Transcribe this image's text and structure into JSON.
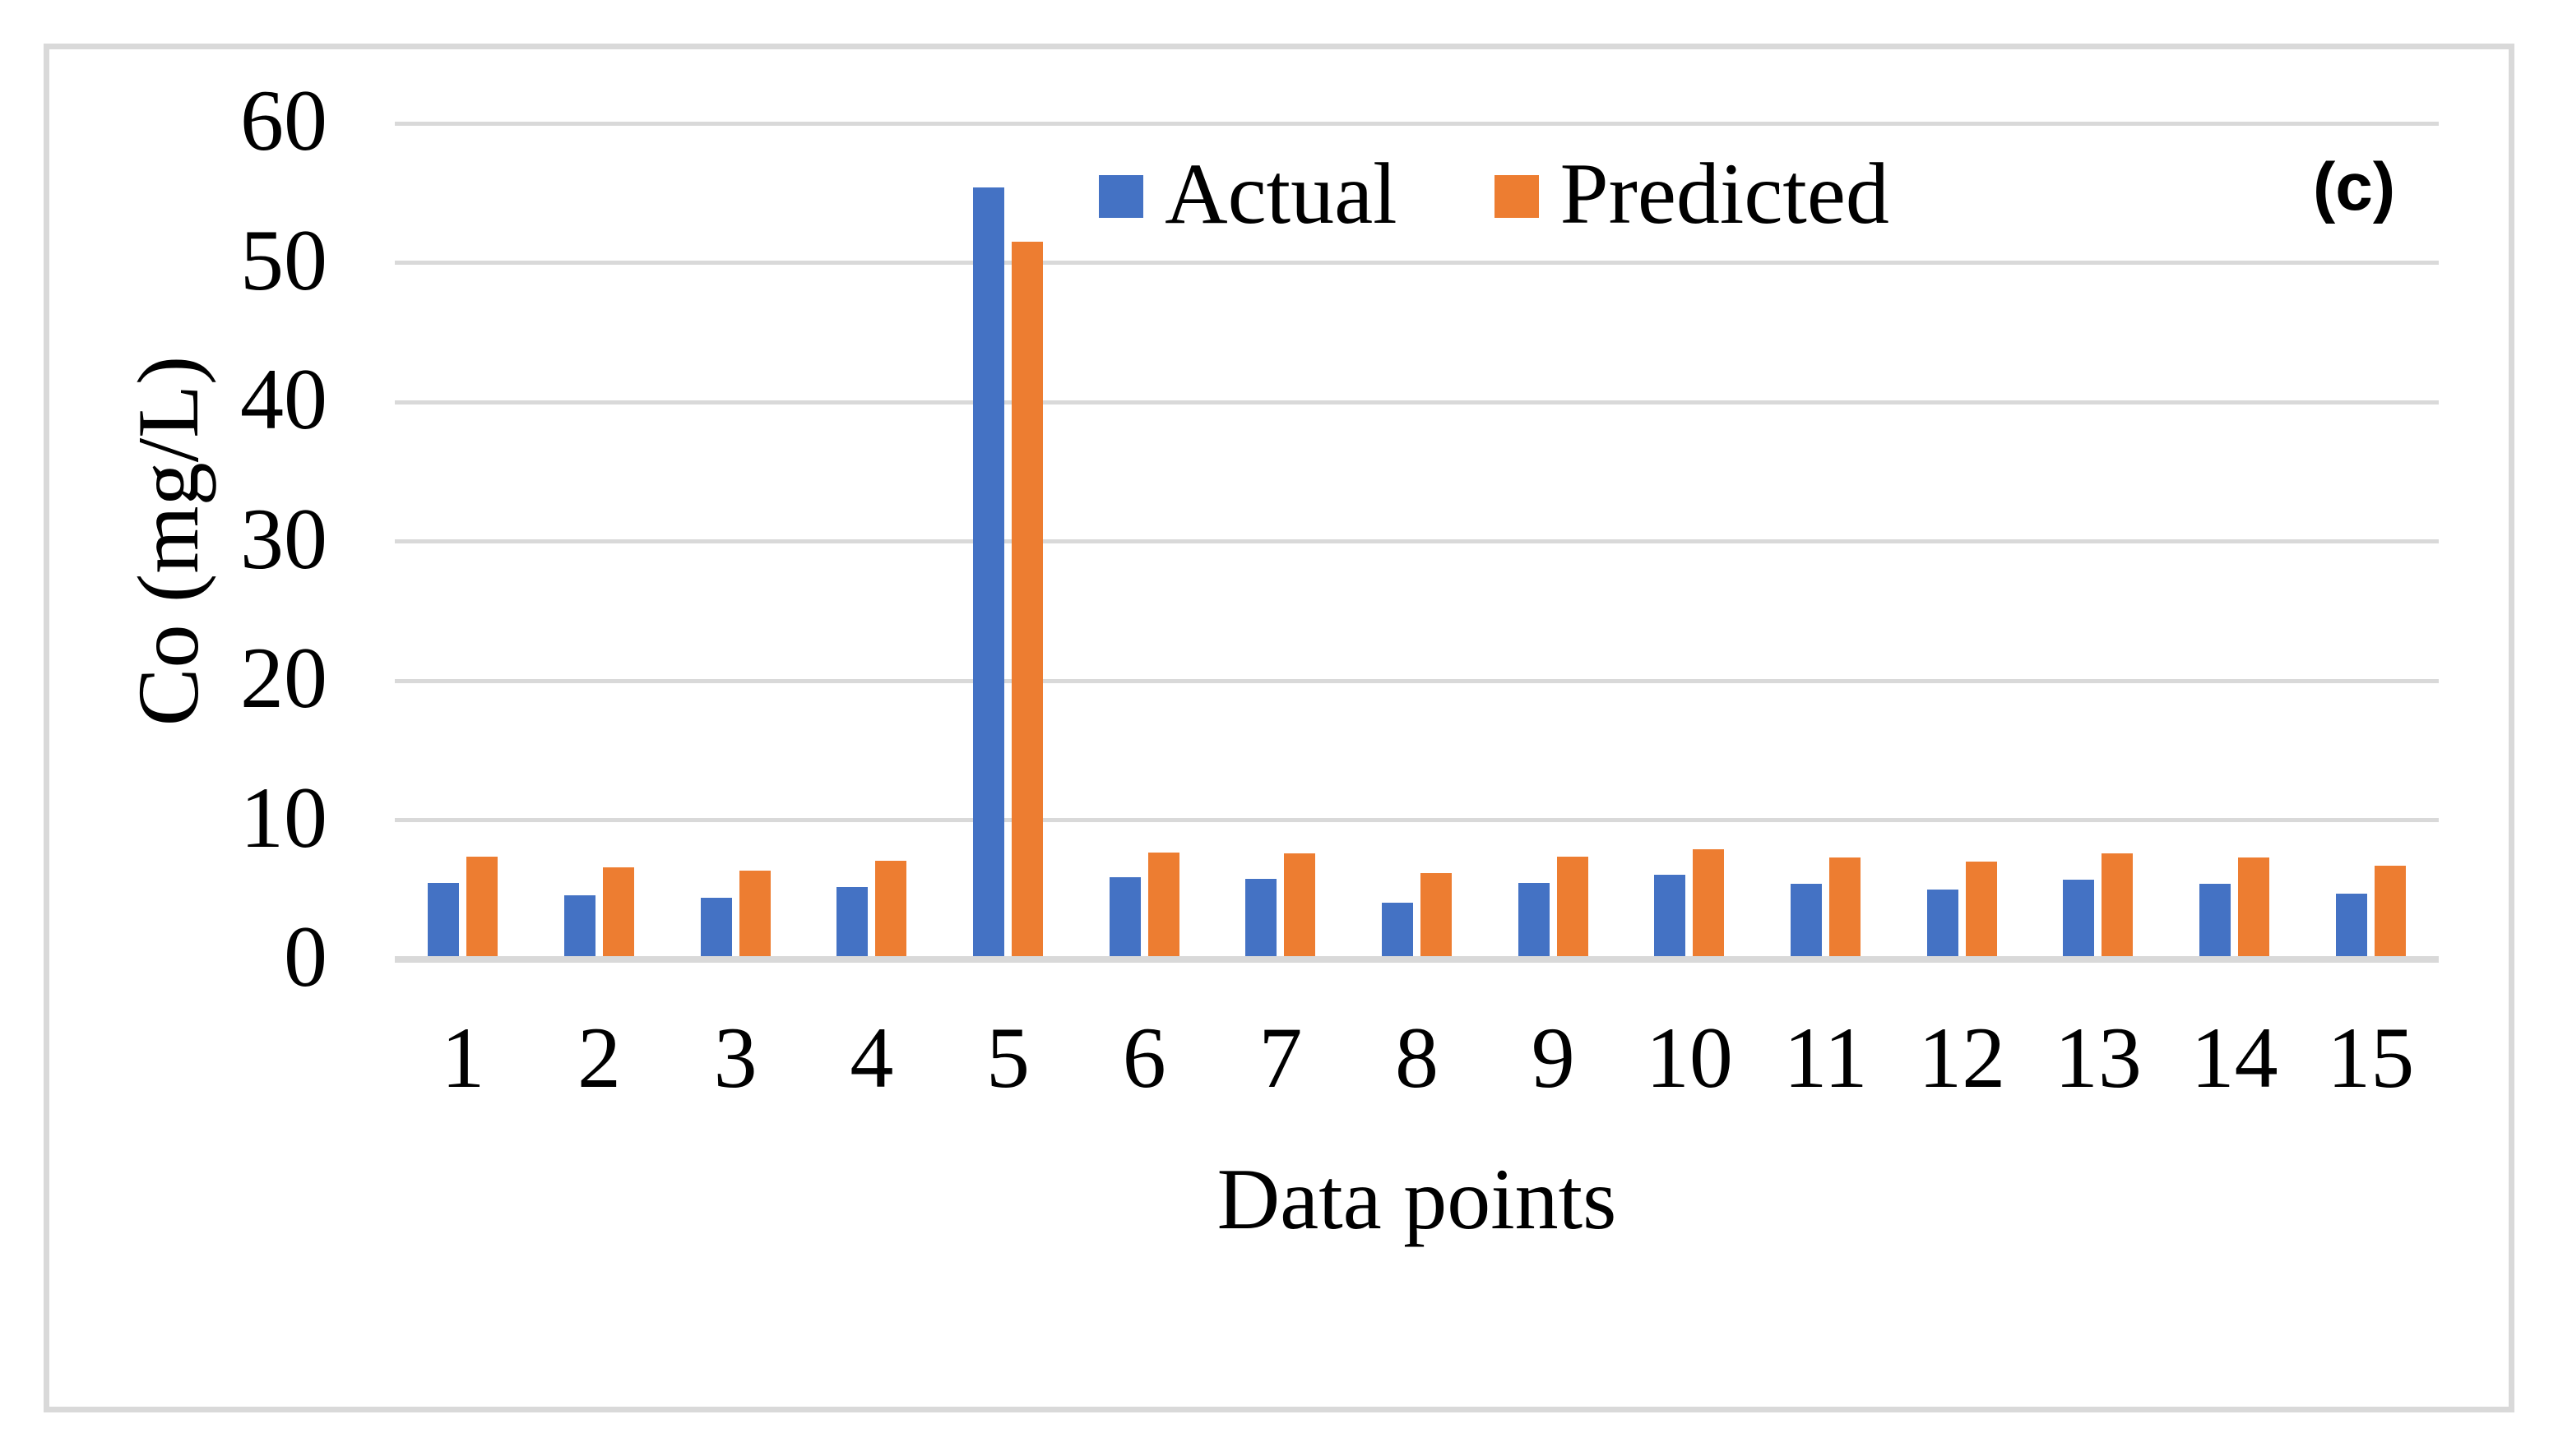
{
  "figure": {
    "panel_label": "(c)"
  },
  "legend": {
    "position": "top-center",
    "items": [
      {
        "label": "Actual",
        "color": "#4472C4"
      },
      {
        "label": "Predicted",
        "color": "#ED7D31"
      }
    ]
  },
  "axes": {
    "y": {
      "title": "Co (mg/L)",
      "ticks": [
        0,
        10,
        20,
        30,
        40,
        50,
        60
      ],
      "min": 0,
      "max": 60
    },
    "x": {
      "title": "Data points",
      "tick_labels": [
        "1",
        "2",
        "3",
        "4",
        "5",
        "6",
        "7",
        "8",
        "9",
        "10",
        "11",
        "12",
        "13",
        "14",
        "15"
      ]
    }
  },
  "colors": {
    "actual": "#4472C4",
    "predicted": "#ED7D31",
    "gridline": "#D9D9D9",
    "axis_line": "#D9D9D9",
    "border": "#D9D9D9",
    "text": "#000000",
    "background": "#FFFFFF"
  },
  "chart_data": {
    "type": "bar",
    "title": "",
    "categories": [
      "1",
      "2",
      "3",
      "4",
      "5",
      "6",
      "7",
      "8",
      "9",
      "10",
      "11",
      "12",
      "13",
      "14",
      "15"
    ],
    "series": [
      {
        "name": "Actual",
        "color": "#4472C4",
        "values": [
          5.5,
          4.6,
          4.4,
          5.2,
          55.4,
          5.9,
          5.8,
          4.1,
          5.5,
          6.1,
          5.4,
          5.0,
          5.7,
          5.4,
          4.7
        ]
      },
      {
        "name": "Predicted",
        "color": "#ED7D31",
        "values": [
          7.4,
          6.6,
          6.4,
          7.1,
          51.5,
          7.7,
          7.6,
          6.2,
          7.4,
          7.9,
          7.3,
          7.0,
          7.6,
          7.3,
          6.7
        ]
      }
    ],
    "xlabel": "Data points",
    "ylabel": "Co (mg/L)",
    "ylim": [
      0,
      60
    ],
    "grid": true,
    "gridlines_every": 10,
    "legend_position": "top-center",
    "panel_label": "(c)"
  }
}
